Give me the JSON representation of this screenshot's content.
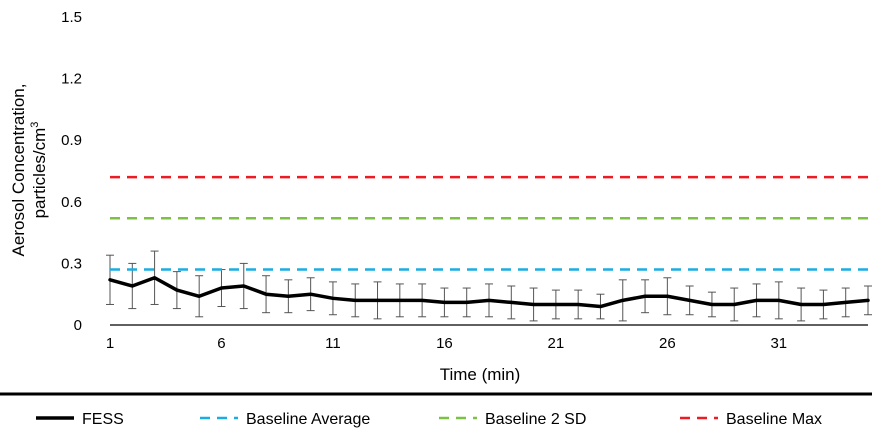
{
  "chart_data": {
    "type": "line",
    "xlabel": "Time (min)",
    "ylabel_line1": "Aerosol Concentration,",
    "ylabel_line2": "particles/cm",
    "ylabel_sup": "3",
    "ylim": [
      0,
      1.5
    ],
    "yticks": [
      "0",
      "0.3",
      "0.6",
      "0.9",
      "1.2",
      "1.5"
    ],
    "xlim": [
      1,
      35
    ],
    "xticks": [
      "1",
      "6",
      "11",
      "16",
      "21",
      "26",
      "31"
    ],
    "grid": false,
    "legend_position": "bottom",
    "x": [
      1,
      2,
      3,
      4,
      5,
      6,
      7,
      8,
      9,
      10,
      11,
      12,
      13,
      14,
      15,
      16,
      17,
      18,
      19,
      20,
      21,
      22,
      23,
      24,
      25,
      26,
      27,
      28,
      29,
      30,
      31,
      32,
      33,
      34,
      35
    ],
    "series": [
      {
        "name": "FESS",
        "style": "solid",
        "color": "#000000",
        "values": [
          0.22,
          0.19,
          0.23,
          0.17,
          0.14,
          0.18,
          0.19,
          0.15,
          0.14,
          0.15,
          0.13,
          0.12,
          0.12,
          0.12,
          0.12,
          0.11,
          0.11,
          0.12,
          0.11,
          0.1,
          0.1,
          0.1,
          0.09,
          0.12,
          0.14,
          0.14,
          0.12,
          0.1,
          0.1,
          0.12,
          0.12,
          0.1,
          0.1,
          0.11,
          0.12
        ],
        "error": [
          0.12,
          0.11,
          0.13,
          0.09,
          0.1,
          0.09,
          0.11,
          0.09,
          0.08,
          0.08,
          0.08,
          0.08,
          0.09,
          0.08,
          0.08,
          0.07,
          0.07,
          0.08,
          0.08,
          0.08,
          0.07,
          0.07,
          0.06,
          0.1,
          0.08,
          0.09,
          0.07,
          0.06,
          0.08,
          0.08,
          0.09,
          0.08,
          0.07,
          0.07,
          0.07
        ]
      },
      {
        "name": "Baseline Average",
        "style": "dashed",
        "color": "#1AADE4",
        "constant": 0.27
      },
      {
        "name": "Baseline 2 SD",
        "style": "dashed",
        "color": "#7CC242",
        "constant": 0.52
      },
      {
        "name": "Baseline Max",
        "style": "dashed",
        "color": "#ED1C24",
        "constant": 0.72
      }
    ]
  }
}
